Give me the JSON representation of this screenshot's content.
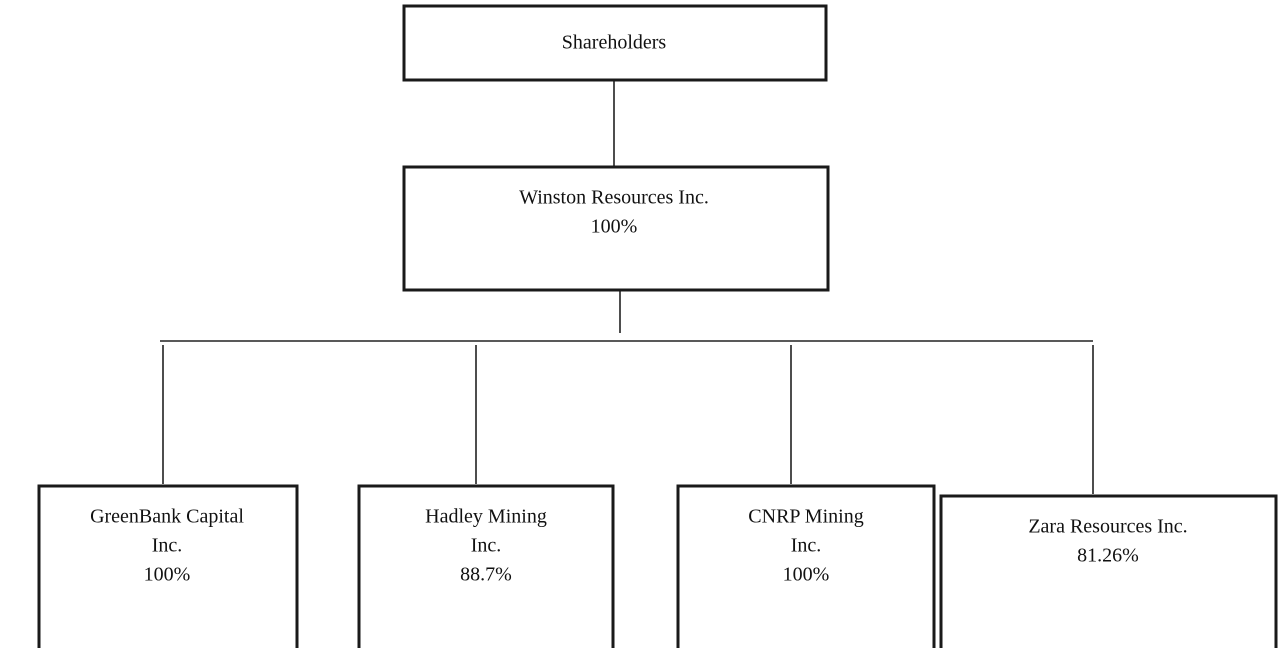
{
  "nodes": [
    {
      "lines": [
        "Shareholders"
      ]
    },
    {
      "lines": [
        "Winston Resources Inc.",
        "100%"
      ]
    },
    {
      "lines": [
        "GreenBank Capital",
        "Inc.",
        "100%"
      ]
    },
    {
      "lines": [
        "Hadley Mining",
        "Inc.",
        "88.7%"
      ]
    },
    {
      "lines": [
        "CNRP Mining",
        "Inc.",
        "100%"
      ]
    },
    {
      "lines": [
        "Zara Resources Inc.",
        "81.26%"
      ]
    }
  ]
}
